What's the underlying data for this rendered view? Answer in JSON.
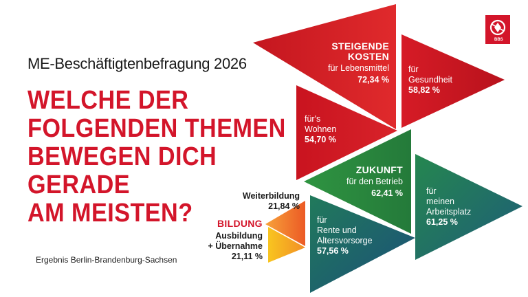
{
  "survey_title": "ME-Beschäftigtenbefragung 2026",
  "question_lines": [
    "WELCHE DER",
    "FOLGENDEN THEMEN",
    "BEWEGEN DICH",
    "GERADE",
    "AM MEISTEN?"
  ],
  "result_note": "Ergebnis Berlin-Brandenburg-Sachsen",
  "logo": {
    "icon": "ig-metall-logo",
    "text": "BBS"
  },
  "steigende_kosten": {
    "header_1": "STEIGENDE",
    "header_2": "KOSTEN",
    "items": [
      {
        "text_1": "für Lebensmittel",
        "value": "72,34 %"
      },
      {
        "text_1": "für",
        "text_2": "Gesundheit",
        "value": "58,82 %"
      },
      {
        "text_1": "für's",
        "text_2": "Wohnen",
        "value": "54,70 %"
      }
    ]
  },
  "zukunft": {
    "header": "ZUKUNFT",
    "items": [
      {
        "text_1": "für den Betrieb",
        "value": "62,41 %"
      },
      {
        "text_1": "für",
        "text_2": "meinen",
        "text_3": "Arbeitsplatz",
        "value": "61,25 %"
      },
      {
        "text_1": "für",
        "text_2": "Rente und",
        "text_3": "Altersvorsorge",
        "value": "57,56 %"
      }
    ]
  },
  "bildung": {
    "header": "BILDUNG",
    "items": [
      {
        "text_1": "Weiterbildung",
        "value": "21,84 %"
      },
      {
        "text_1": "Ausbildung",
        "text_2": "+ Übernahme",
        "value": "21,11 %"
      }
    ]
  },
  "colors": {
    "red_dark": "#b41a24",
    "red": "#d3152a",
    "green": "#2c8a3f",
    "teal": "#1f6f63",
    "teal_blue": "#1d5f73",
    "orange": "#f0722b",
    "yellow": "#f3b51c"
  }
}
